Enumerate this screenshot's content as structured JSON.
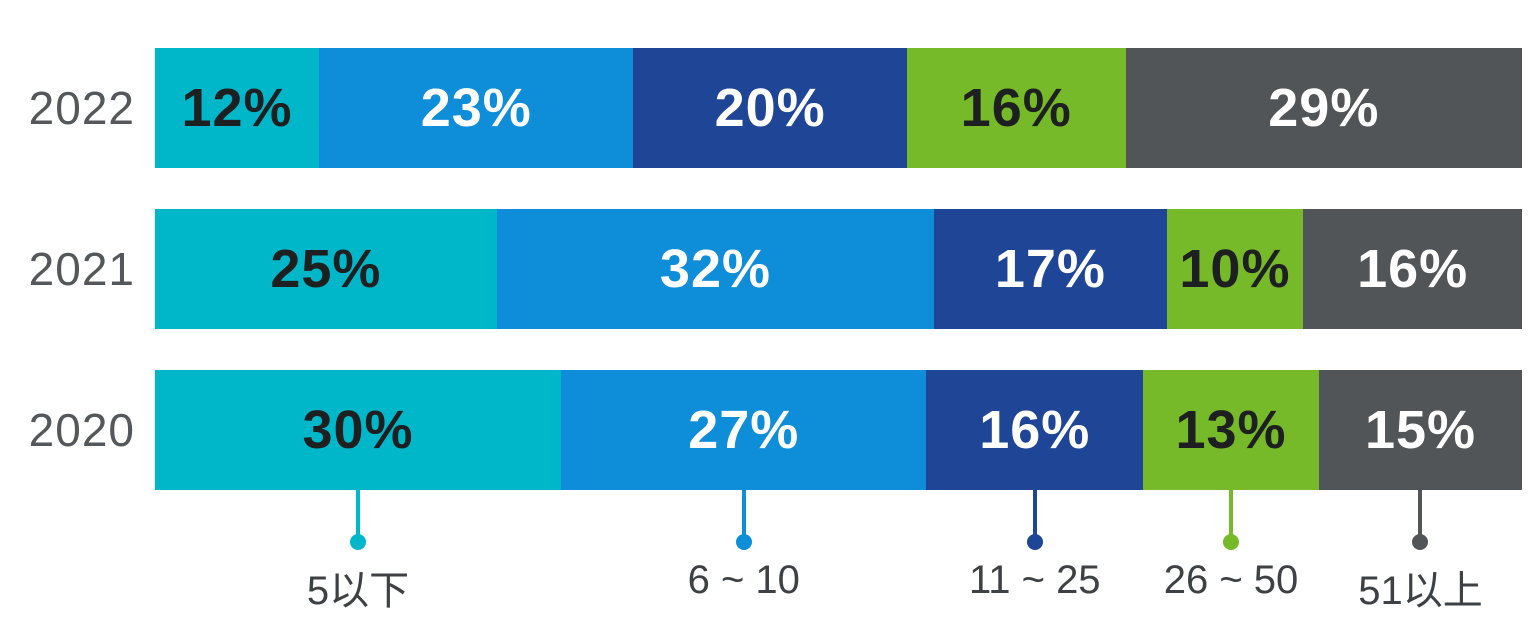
{
  "chart_data": {
    "type": "bar",
    "variant": "horizontal-stacked",
    "title": "",
    "xlabel": "",
    "ylabel": "",
    "grid": false,
    "legend_position": "bottom",
    "value_suffix": "%",
    "categories": [
      "2022",
      "2021",
      "2020"
    ],
    "legend": [
      {
        "label": "5以下",
        "color": "#00b7c9",
        "value_text_color": "#1d1f21",
        "marker": "pin-dot-icon"
      },
      {
        "label": "6 ~ 10",
        "color": "#0e8dd8",
        "value_text_color": "#ffffff",
        "marker": "pin-dot-icon"
      },
      {
        "label": "11 ~ 25",
        "color": "#1f4596",
        "value_text_color": "#ffffff",
        "marker": "pin-dot-icon"
      },
      {
        "label": "26 ~ 50",
        "color": "#77ba29",
        "value_text_color": "#1d1f21",
        "marker": "pin-dot-icon"
      },
      {
        "label": "51以上",
        "color": "#515558",
        "value_text_color": "#ffffff",
        "marker": "pin-dot-icon"
      }
    ],
    "series": [
      {
        "name": "5以下",
        "values": [
          12,
          25,
          30
        ]
      },
      {
        "name": "6 ~ 10",
        "values": [
          23,
          32,
          27
        ]
      },
      {
        "name": "11 ~ 25",
        "values": [
          20,
          17,
          16
        ]
      },
      {
        "name": "26 ~ 50",
        "values": [
          16,
          10,
          13
        ]
      },
      {
        "name": "51以上",
        "values": [
          29,
          16,
          15
        ]
      }
    ],
    "rows": [
      {
        "year": "2022",
        "values": [
          12,
          23,
          20,
          16,
          29
        ],
        "labels": [
          "12%",
          "23%",
          "20%",
          "16%",
          "29%"
        ]
      },
      {
        "year": "2021",
        "values": [
          25,
          32,
          17,
          10,
          16
        ],
        "labels": [
          "25%",
          "32%",
          "17%",
          "10%",
          "16%"
        ]
      },
      {
        "year": "2020",
        "values": [
          30,
          27,
          16,
          13,
          15
        ],
        "labels": [
          "30%",
          "27%",
          "16%",
          "13%",
          "15%"
        ]
      }
    ],
    "colors": {
      "background": "#ffffff",
      "year_label_text": "#54585a",
      "legend_label_text": "#3d4144"
    }
  }
}
